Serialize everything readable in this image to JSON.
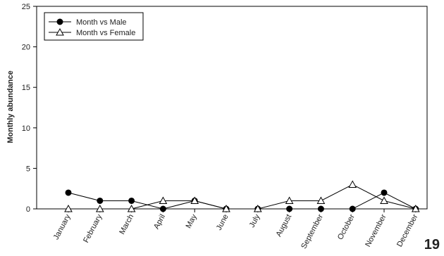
{
  "page_number": "19",
  "chart_data": {
    "type": "line",
    "ylabel": "Monthly abundance",
    "xlabel": "",
    "ylim": [
      0,
      25
    ],
    "yticks": [
      0,
      5,
      10,
      15,
      20,
      25
    ],
    "categories": [
      "January",
      "February",
      "March",
      "April",
      "May",
      "June",
      "July",
      "August",
      "September",
      "October",
      "November",
      "December"
    ],
    "legend_position": "top-left",
    "series": [
      {
        "name": "Month vs Male",
        "marker": "filled-circle",
        "color": "#000000",
        "values": [
          2,
          1,
          1,
          0,
          1,
          0,
          0,
          0,
          0,
          0,
          2,
          0
        ]
      },
      {
        "name": "Month vs Female",
        "marker": "open-triangle",
        "color": "#000000",
        "values": [
          0,
          0,
          0,
          1,
          1,
          0,
          0,
          1,
          1,
          3,
          1,
          0
        ]
      }
    ]
  }
}
